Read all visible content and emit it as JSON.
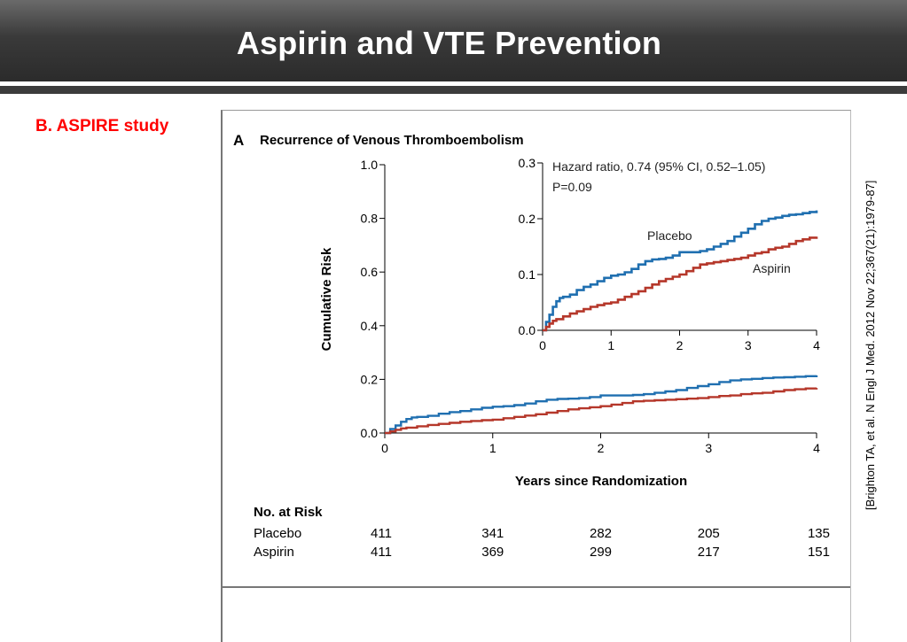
{
  "slide": {
    "title": "Aspirin and VTE Prevention",
    "subtitle": "B.  ASPIRE study",
    "citation": "[Brighton TA, et al. N Engl J Med. 2012 Nov 22;367(21):1979-87]"
  },
  "figure": {
    "panel_letter": "A",
    "panel_title": "Recurrence of Venous Thromboembolism"
  },
  "chart_data": {
    "type": "line",
    "title": "Recurrence of Venous Thromboembolism",
    "xlabel": "Years since Randomization",
    "ylabel": "Cumulative Risk",
    "xlim": [
      0,
      4
    ],
    "ylim": [
      0,
      1.0
    ],
    "x_ticks": [
      "0",
      "1",
      "2",
      "3",
      "4"
    ],
    "y_ticks": [
      "0.0",
      "0.2",
      "0.4",
      "0.6",
      "0.8",
      "1.0"
    ],
    "series": [
      {
        "name": "Placebo",
        "color": "#1f6fb0",
        "x": [
          0,
          0.05,
          0.1,
          0.15,
          0.2,
          0.25,
          0.3,
          0.4,
          0.5,
          0.6,
          0.7,
          0.8,
          0.9,
          1.0,
          1.1,
          1.2,
          1.3,
          1.4,
          1.5,
          1.6,
          1.7,
          1.8,
          1.9,
          2.0,
          2.1,
          2.2,
          2.3,
          2.4,
          2.5,
          2.6,
          2.7,
          2.8,
          2.9,
          3.0,
          3.1,
          3.2,
          3.3,
          3.4,
          3.5,
          3.6,
          3.7,
          3.8,
          3.9,
          4.0
        ],
        "y": [
          0,
          0.015,
          0.028,
          0.042,
          0.052,
          0.058,
          0.06,
          0.064,
          0.072,
          0.078,
          0.082,
          0.088,
          0.094,
          0.098,
          0.1,
          0.104,
          0.11,
          0.118,
          0.124,
          0.127,
          0.128,
          0.13,
          0.134,
          0.14,
          0.14,
          0.14,
          0.142,
          0.145,
          0.15,
          0.155,
          0.16,
          0.168,
          0.175,
          0.182,
          0.19,
          0.196,
          0.2,
          0.202,
          0.205,
          0.207,
          0.208,
          0.21,
          0.212,
          0.215
        ]
      },
      {
        "name": "Aspirin",
        "color": "#b5372a",
        "x": [
          0,
          0.05,
          0.1,
          0.15,
          0.2,
          0.3,
          0.4,
          0.5,
          0.6,
          0.7,
          0.8,
          0.9,
          1.0,
          1.1,
          1.2,
          1.3,
          1.4,
          1.5,
          1.6,
          1.7,
          1.8,
          1.9,
          2.0,
          2.1,
          2.2,
          2.3,
          2.4,
          2.5,
          2.6,
          2.7,
          2.8,
          2.9,
          3.0,
          3.1,
          3.2,
          3.3,
          3.4,
          3.5,
          3.6,
          3.7,
          3.8,
          3.9,
          4.0
        ],
        "y": [
          0,
          0.006,
          0.012,
          0.017,
          0.02,
          0.025,
          0.03,
          0.034,
          0.038,
          0.042,
          0.045,
          0.048,
          0.05,
          0.055,
          0.06,
          0.065,
          0.07,
          0.076,
          0.082,
          0.088,
          0.092,
          0.096,
          0.1,
          0.106,
          0.112,
          0.118,
          0.12,
          0.122,
          0.124,
          0.126,
          0.128,
          0.13,
          0.134,
          0.138,
          0.14,
          0.145,
          0.148,
          0.15,
          0.155,
          0.16,
          0.163,
          0.166,
          0.168
        ]
      }
    ],
    "inset": {
      "xlim": [
        0,
        4
      ],
      "ylim": [
        0,
        0.3
      ],
      "x_ticks": [
        "0",
        "1",
        "2",
        "3",
        "4"
      ],
      "y_ticks": [
        "0.0",
        "0.1",
        "0.2",
        "0.3"
      ],
      "annotation_line1": "Hazard ratio, 0.74 (95% CI, 0.52–1.05)",
      "annotation_line2": "P=0.09",
      "label_placebo": "Placebo",
      "label_aspirin": "Aspirin"
    },
    "risk_table": {
      "heading": "No. at Risk",
      "rows": [
        {
          "label": "Placebo",
          "values": [
            "411",
            "341",
            "282",
            "205",
            "135"
          ]
        },
        {
          "label": "Aspirin",
          "values": [
            "411",
            "369",
            "299",
            "217",
            "151"
          ]
        }
      ]
    }
  }
}
